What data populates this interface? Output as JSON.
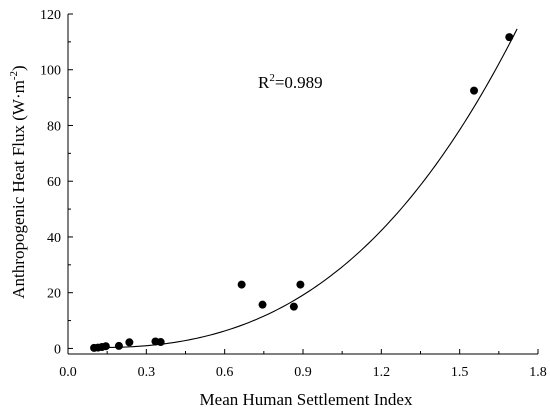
{
  "chart_data": {
    "type": "scatter",
    "title": "",
    "xlabel": "Mean Human Settlement Index",
    "ylabel_main": "Anthropogenic Heat Flux (W·m",
    "ylabel_sup": "-2",
    "ylabel_close": ")",
    "xlim": [
      0.0,
      1.8
    ],
    "ylim": [
      -2,
      120
    ],
    "xticks": [
      "0.0",
      "0.3",
      "0.6",
      "0.9",
      "1.2",
      "1.5",
      "1.8"
    ],
    "yticks": [
      "0",
      "20",
      "40",
      "60",
      "80",
      "100",
      "120"
    ],
    "annotation": {
      "prefix": "R",
      "sup": "2",
      "suffix": "=0.989"
    },
    "series": [
      {
        "marker": "circle",
        "color": "#000000",
        "points": [
          {
            "x": 0.1,
            "y": 0.2
          },
          {
            "x": 0.115,
            "y": 0.3
          },
          {
            "x": 0.13,
            "y": 0.5
          },
          {
            "x": 0.145,
            "y": 0.8
          },
          {
            "x": 0.195,
            "y": 0.9
          },
          {
            "x": 0.235,
            "y": 2.2
          },
          {
            "x": 0.335,
            "y": 2.5
          },
          {
            "x": 0.355,
            "y": 2.3
          },
          {
            "x": 0.665,
            "y": 22.9
          },
          {
            "x": 0.745,
            "y": 15.7
          },
          {
            "x": 0.865,
            "y": 15.0
          },
          {
            "x": 0.89,
            "y": 22.9
          },
          {
            "x": 1.555,
            "y": 92.5
          },
          {
            "x": 1.69,
            "y": 111.7
          }
        ]
      }
    ],
    "fit_curve": {
      "type": "cubic",
      "x_range": [
        0.1,
        1.72
      ],
      "coefficients": [
        0.6,
        -4.0,
        12.5,
        16.5
      ]
    },
    "grid": false,
    "legend": "none"
  }
}
